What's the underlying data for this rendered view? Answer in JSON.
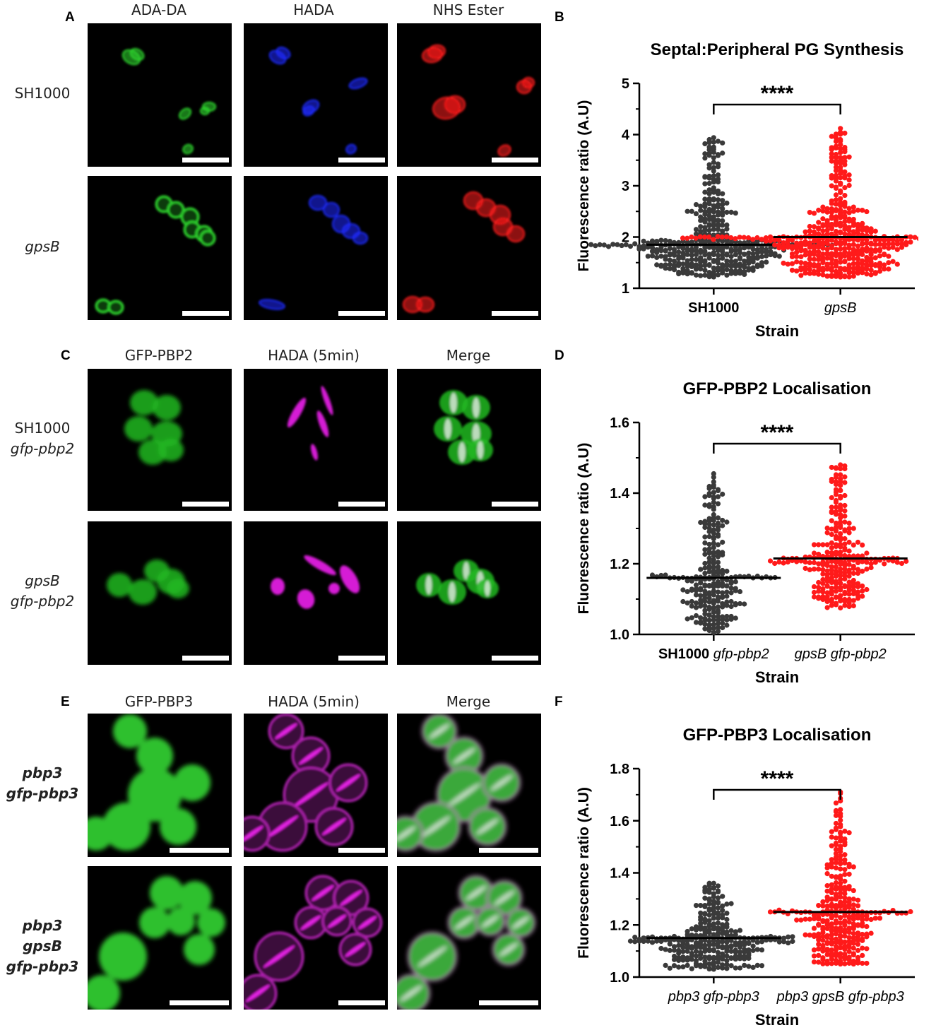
{
  "panelA": {
    "letter": "A",
    "columns": [
      "ADA-DA",
      "HADA",
      "NHS Ester"
    ],
    "rows": [
      {
        "line1": "SH1000",
        "line2": ""
      },
      {
        "line1": "gpsB",
        "line2": ""
      }
    ]
  },
  "panelC": {
    "letter": "C",
    "columns": [
      "GFP-PBP2",
      "HADA (5min)",
      "Merge"
    ],
    "rows": [
      {
        "line1": "SH1000",
        "line2": "gfp-pbp2"
      },
      {
        "line1": "gpsB",
        "line2": "gfp-pbp2"
      }
    ]
  },
  "panelE": {
    "letter": "E",
    "columns": [
      "GFP-PBP3",
      "HADA (5min)",
      "Merge"
    ],
    "rows": [
      {
        "line1": "pbp3",
        "line2": "gfp-pbp3"
      },
      {
        "line1": "pbp3 gpsB",
        "line2": "gfp-pbp3"
      }
    ]
  },
  "channel_colors": {
    "green": "#2fd82f",
    "blue": "#1f2bff",
    "red": "#ff1e1e",
    "magenta": "#e020e0",
    "white": "#f0f0f0"
  },
  "chart_data": [
    {
      "panel": "B",
      "type": "scatter",
      "title": "Septal:Peripheral PG Synthesis",
      "xlabel": "Strain",
      "ylabel": "Fluorescence ratio (A.U)",
      "ylim": [
        1,
        5
      ],
      "yticks": [
        "1",
        "2",
        "3",
        "4",
        "5"
      ],
      "categories": [
        {
          "plain": "SH1000",
          "italic": ""
        },
        {
          "plain": "",
          "italic": "gpsB"
        }
      ],
      "series": [
        {
          "color": "#3a3a3a",
          "median": 1.85,
          "min": 1.22,
          "max": 3.94,
          "n": 420
        },
        {
          "color": "#ff1a1a",
          "median": 2.0,
          "min": 1.22,
          "max": 4.12,
          "n": 480
        }
      ],
      "significance": "****",
      "grid": false
    },
    {
      "panel": "D",
      "type": "scatter",
      "title": "GFP-PBP2 Localisation",
      "xlabel": "Strain",
      "ylabel": "Fluorescence ratio (A.U)",
      "ylim": [
        1.0,
        1.6
      ],
      "yticks": [
        "1.0",
        "1.2",
        "1.4",
        "1.6"
      ],
      "categories": [
        {
          "plain": "SH1000",
          "italic": "gfp-pbp2"
        },
        {
          "plain": "",
          "italic": "gpsB gfp-pbp2"
        }
      ],
      "series": [
        {
          "color": "#3a3a3a",
          "median": 1.16,
          "min": 1.005,
          "max": 1.455,
          "n": 250
        },
        {
          "color": "#ff1a1a",
          "median": 1.215,
          "min": 1.075,
          "max": 1.48,
          "n": 280
        }
      ],
      "significance": "****",
      "grid": false
    },
    {
      "panel": "F",
      "type": "scatter",
      "title": "GFP-PBP3 Localisation",
      "xlabel": "Strain",
      "ylabel": "Fluorescence ratio (A.U)",
      "ylim": [
        1.0,
        1.8
      ],
      "yticks": [
        "1.0",
        "1.2",
        "1.4",
        "1.6",
        "1.8"
      ],
      "categories": [
        {
          "plain": "",
          "italic": "pbp3 gfp-pbp3"
        },
        {
          "plain": "",
          "italic": "pbp3 gpsB gfp-pbp3"
        }
      ],
      "series": [
        {
          "color": "#3a3a3a",
          "median": 1.15,
          "min": 1.03,
          "max": 1.36,
          "n": 300
        },
        {
          "color": "#ff1a1a",
          "median": 1.25,
          "min": 1.05,
          "max": 1.71,
          "n": 320
        }
      ],
      "significance": "****",
      "grid": false
    }
  ]
}
